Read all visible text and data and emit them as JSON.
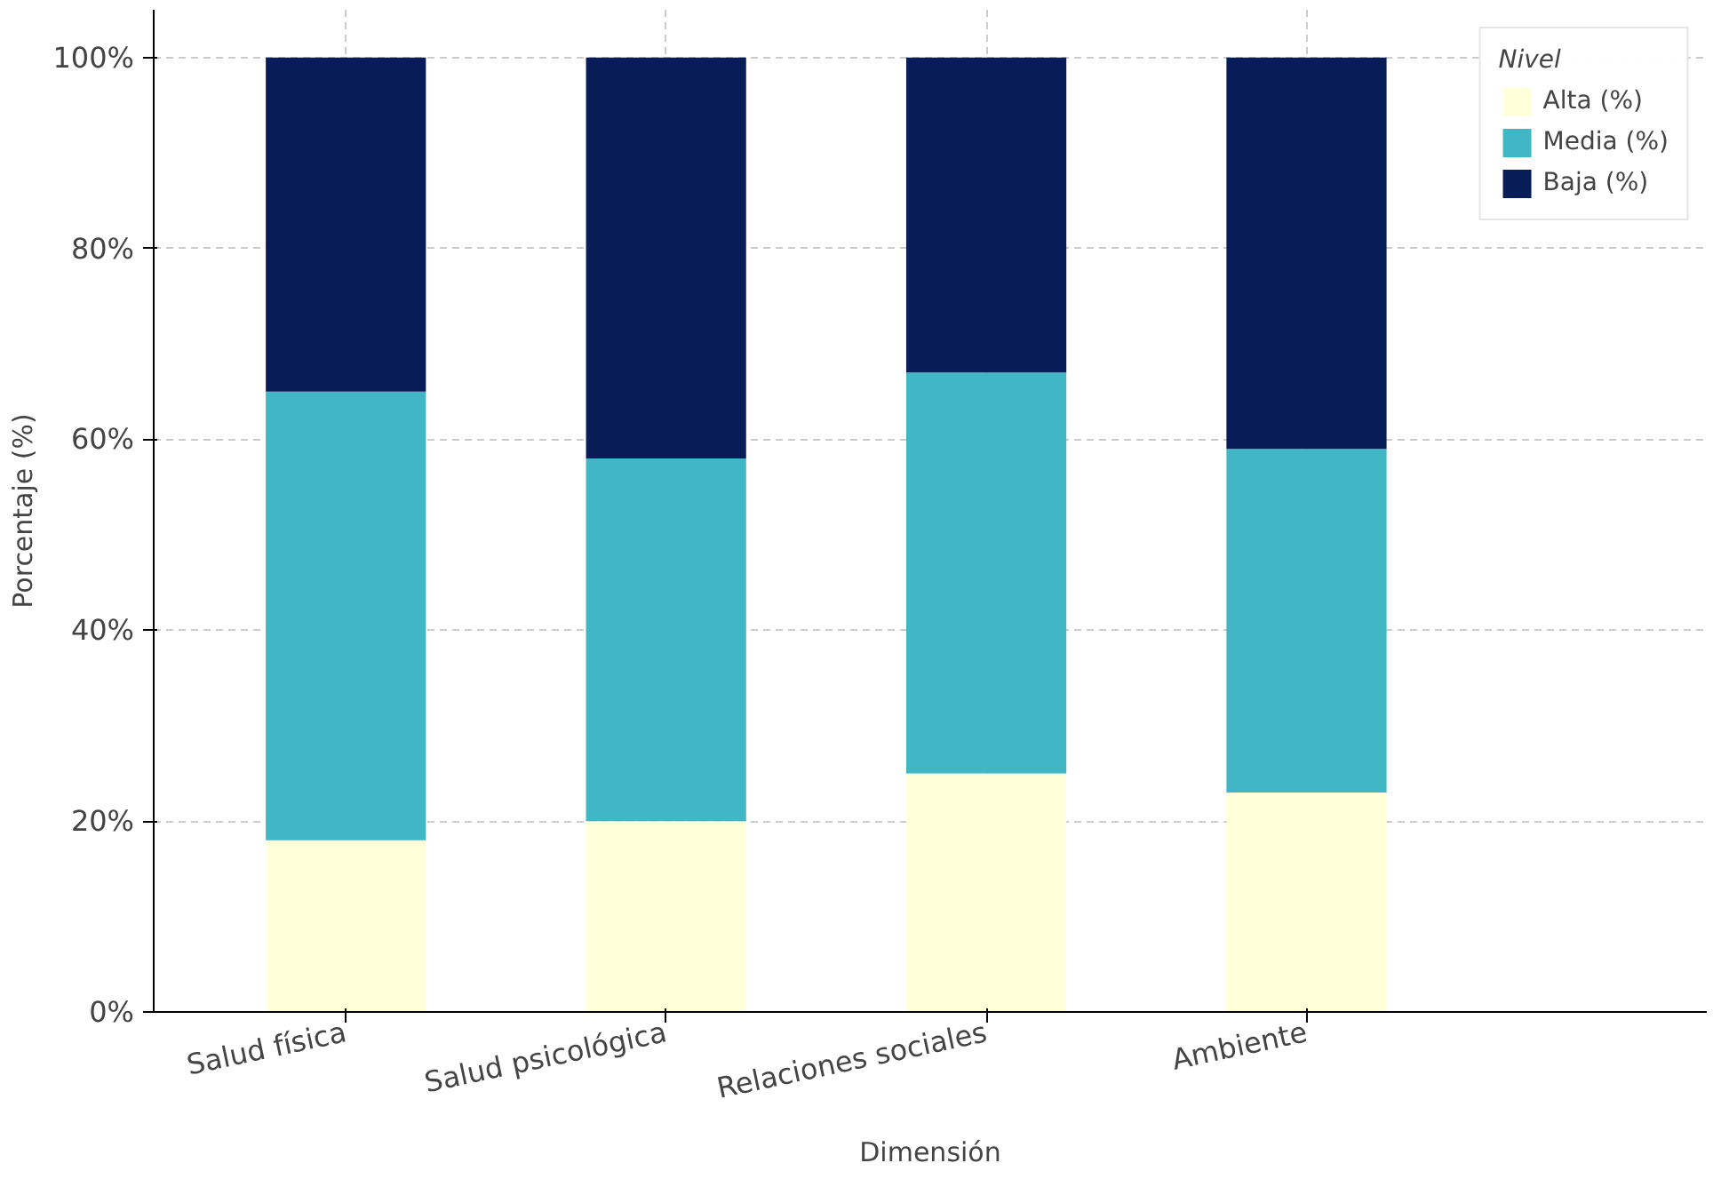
{
  "chart_data": {
    "type": "bar",
    "stacked": true,
    "xlabel": "Dimensión",
    "ylabel": "Porcentaje (%)",
    "legend_title": "Nivel",
    "legend": "top right",
    "grid": true,
    "categories": [
      "Salud física",
      "Salud psicológica",
      "Relaciones sociales",
      "Ambiente"
    ],
    "series": [
      {
        "name": "Alta (%)",
        "color": "#ffffd9",
        "values": [
          18,
          20,
          25,
          23
        ]
      },
      {
        "name": "Media (%)",
        "color": "#41b6c4",
        "values": [
          47,
          38,
          42,
          36
        ]
      },
      {
        "name": "Baja (%)",
        "color": "#081d58",
        "values": [
          35,
          42,
          33,
          41
        ]
      }
    ],
    "ylim": [
      0,
      105
    ],
    "yticks": [
      {
        "value": 0,
        "label": "0%"
      },
      {
        "value": 20,
        "label": "20%"
      },
      {
        "value": 40,
        "label": "40%"
      },
      {
        "value": 60,
        "label": "60%"
      },
      {
        "value": 80,
        "label": "80%"
      },
      {
        "value": 100,
        "label": "100%"
      }
    ]
  }
}
